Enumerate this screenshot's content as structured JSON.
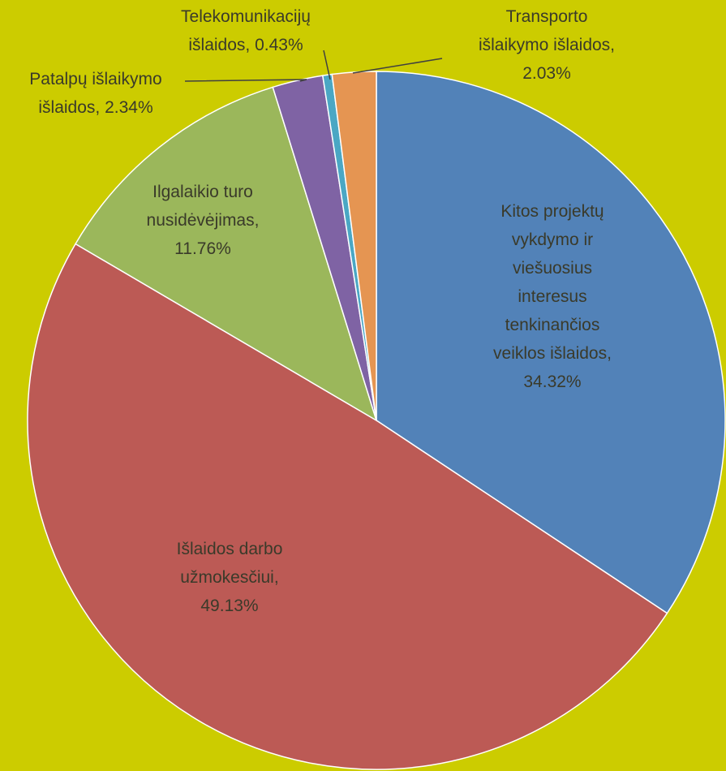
{
  "chart_data": {
    "type": "pie",
    "title": "",
    "colors": {
      "background": "#cccc00",
      "slice_border": "#ffffff",
      "leader_line": "#404040"
    },
    "slices": [
      {
        "label_lines": [
          "Kitos projektų",
          "vykdymo ir",
          "viešuosius",
          "interesus",
          "tenkinančios",
          "veiklos išlaidos,",
          "34.32%"
        ],
        "value": 34.32,
        "color": "#5282b8"
      },
      {
        "label_lines": [
          "Išlaidos darbo",
          "užmokesčiui,",
          "49.13%"
        ],
        "value": 49.13,
        "color": "#bc5a55"
      },
      {
        "label_lines": [
          "Ilgalaikio turo",
          "nusidėvėjimas,",
          "11.76%"
        ],
        "value": 11.76,
        "color": "#9bb75b"
      },
      {
        "label_lines": [
          "Patalpų išlaikymo",
          "išlaidos, 2.34%"
        ],
        "value": 2.34,
        "color": "#7f63a4"
      },
      {
        "label_lines": [
          "Telekomunikacijų",
          "išlaidos, 0.43%"
        ],
        "value": 0.43,
        "color": "#4aa7c4"
      },
      {
        "label_lines": [
          "Transporto",
          "išlaikymo išlaidos,",
          "2.03%"
        ],
        "value": 2.03,
        "color": "#e59552"
      }
    ]
  }
}
